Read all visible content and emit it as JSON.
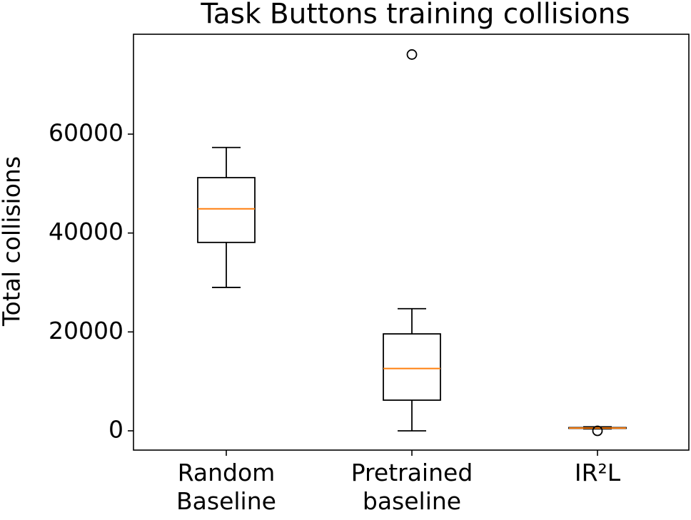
{
  "chart_data": {
    "type": "box",
    "title": "Task Buttons training collisions",
    "ylabel": "Total collisions",
    "categories": [
      "Random\nBaseline",
      "Pretrained\nbaseline",
      "IR²L"
    ],
    "boxes": [
      {
        "whislo": 29000,
        "q1": 38100,
        "med": 44900,
        "q3": 51200,
        "whishi": 57300,
        "fliers": []
      },
      {
        "whislo": 0,
        "q1": 6200,
        "med": 12600,
        "q3": 19600,
        "whishi": 24700,
        "fliers": [
          76100
        ]
      },
      {
        "whislo": 400,
        "q1": 500,
        "med": 550,
        "q3": 650,
        "whishi": 800,
        "fliers": [
          0
        ]
      }
    ],
    "box_color": "#000000",
    "median_color": "#ff7f0e",
    "ylim": [
      -3900,
      80200
    ],
    "yticks": [
      0,
      20000,
      40000,
      60000
    ],
    "grid": false
  }
}
